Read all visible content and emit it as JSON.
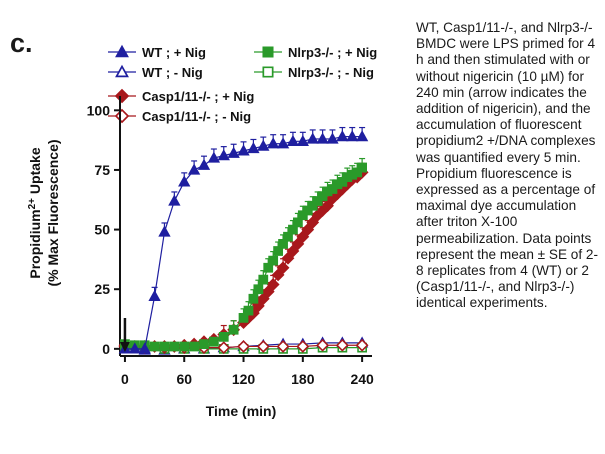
{
  "panel_label": "c.",
  "caption": "WT, Casp1/11-/-, and Nlrp3-/- BMDC were LPS primed for 4 h and then stimulated with or without nigericin (10 µM) for 240 min (arrow indicates the addition of nigericin), and the accumulation of fluorescent propidium2 +/DNA complexes was quantified every 5 min. Propidium fluorescence is expressed as a percentage of maximal dye accumulation after triton X-100 permeabilization. Data points represent the mean ± SE of 2-8 replicates from 4 (WT) or 2 (Casp1/11-/-, and Nlrp3-/-) identical experiments.",
  "colors": {
    "blue": "#1f1fa0",
    "green": "#2a9a2a",
    "red": "#a8181c",
    "axis": "#111111"
  },
  "chart_data": {
    "type": "scatter",
    "xlabel": "Time (min)",
    "ylabel_line1": "Propidium",
    "ylabel_sup": "2+",
    "ylabel_suffix": " Uptake",
    "ylabel_line2": "(% Max Fluorescence)",
    "xlim": [
      -5,
      250
    ],
    "ylim": [
      -3,
      106
    ],
    "xticks": [
      0,
      60,
      120,
      180,
      240
    ],
    "yticks": [
      0,
      25,
      50,
      75,
      100
    ],
    "arrow_x": 0,
    "series": [
      {
        "name": "WT ; + Nig",
        "marker": "triangle",
        "filled": true,
        "color": "blue",
        "x": [
          0,
          10,
          20,
          30,
          40,
          50,
          60,
          70,
          80,
          90,
          100,
          110,
          120,
          130,
          140,
          150,
          160,
          170,
          180,
          190,
          200,
          210,
          220,
          230,
          240
        ],
        "y": [
          0,
          0,
          0,
          22,
          49,
          62,
          70,
          75,
          77,
          80,
          81,
          82,
          83,
          84,
          85,
          86,
          86,
          87,
          87,
          88,
          88,
          88,
          89,
          89,
          89
        ]
      },
      {
        "name": "WT ; - Nig",
        "marker": "triangle",
        "filled": false,
        "color": "blue",
        "x": [
          0,
          20,
          40,
          60,
          80,
          100,
          120,
          140,
          160,
          180,
          200,
          220,
          240
        ],
        "y": [
          0,
          -0.5,
          -0.5,
          0,
          0,
          0.5,
          1,
          1.5,
          2,
          2,
          2.5,
          2.5,
          2.5
        ]
      },
      {
        "name": "Nlrp3-/- ; + Nig",
        "marker": "square",
        "filled": true,
        "color": "green",
        "x": [
          0,
          10,
          20,
          30,
          40,
          50,
          60,
          70,
          80,
          90,
          100,
          110,
          120,
          125,
          130,
          135,
          140,
          145,
          150,
          155,
          160,
          165,
          170,
          175,
          180,
          185,
          190,
          195,
          200,
          205,
          210,
          215,
          220,
          225,
          230,
          235,
          240
        ],
        "y": [
          2,
          1.5,
          1.5,
          1,
          1,
          1,
          1,
          1,
          2,
          3,
          5,
          8,
          13,
          16,
          21,
          25,
          29,
          34,
          37,
          41,
          44,
          47,
          50,
          53,
          56,
          58,
          60,
          62,
          64,
          66,
          67,
          69,
          70,
          72,
          73,
          74,
          76
        ]
      },
      {
        "name": "Nlrp3-/- ; - Nig",
        "marker": "square",
        "filled": false,
        "color": "green",
        "x": [
          0,
          20,
          40,
          60,
          80,
          100,
          120,
          140,
          160,
          180,
          200,
          220,
          240
        ],
        "y": [
          0.5,
          0.5,
          0,
          0,
          0,
          0,
          0,
          0,
          0,
          0,
          0.5,
          0.5,
          0.5
        ]
      },
      {
        "name": "Casp1/11-/- ; + Nig",
        "marker": "diamond",
        "filled": true,
        "color": "red",
        "x": [
          0,
          10,
          20,
          30,
          40,
          50,
          60,
          70,
          80,
          90,
          100,
          110,
          120,
          125,
          130,
          135,
          140,
          145,
          150,
          155,
          160,
          165,
          170,
          175,
          180,
          185,
          190,
          195,
          200,
          205,
          210,
          215,
          220,
          225,
          230,
          235,
          240
        ],
        "y": [
          1.5,
          1,
          1,
          1,
          1,
          1,
          1.5,
          2,
          3,
          4,
          6,
          8,
          11,
          13,
          15,
          18,
          21,
          24,
          27,
          31,
          34,
          38,
          41,
          44,
          47,
          50,
          53,
          56,
          58,
          60,
          63,
          65,
          67,
          69,
          71,
          72,
          74
        ]
      },
      {
        "name": "Casp1/11-/- ; - Nig",
        "marker": "diamond",
        "filled": false,
        "color": "red",
        "x": [
          0,
          20,
          40,
          60,
          80,
          100,
          120,
          140,
          160,
          180,
          200,
          220,
          240
        ],
        "y": [
          1,
          0.5,
          0.5,
          0.5,
          0.5,
          0.5,
          1,
          1,
          1,
          1,
          1.5,
          1.5,
          1.5
        ]
      }
    ]
  }
}
